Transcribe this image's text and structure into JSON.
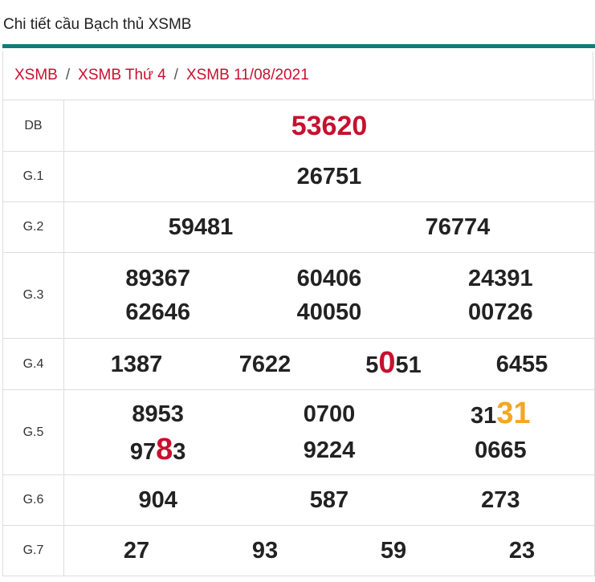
{
  "header": {
    "title": "Chi tiết cầu Bạch thủ XSMB"
  },
  "breadcrumb": [
    "XSMB",
    "XSMB Thứ 4",
    "XSMB 11/08/2021"
  ],
  "breadcrumb_separator": "/",
  "table": {
    "rows": [
      {
        "label": "DB",
        "color": "#c8102e",
        "numbers": [
          "53620"
        ]
      },
      {
        "label": "G.1",
        "numbers": [
          "26751"
        ]
      },
      {
        "label": "G.2",
        "numbers": [
          "59481",
          "76774"
        ]
      },
      {
        "label": "G.3",
        "numbers": [
          "89367",
          "60406",
          "24391",
          "62646",
          "40050",
          "00726"
        ]
      },
      {
        "label": "G.4",
        "numbers": [
          "1387",
          "7622",
          {
            "pre": "5",
            "hl": "0",
            "post": "51",
            "hl_color": "#c8102e"
          },
          "6455"
        ]
      },
      {
        "label": "G.5",
        "numbers": [
          "8953",
          "0700",
          {
            "pre": "31",
            "hl": "31",
            "hl_color": "#f5a623"
          },
          {
            "pre": "97",
            "hl": "8",
            "post": "3",
            "hl_color": "#c8102e"
          },
          "9224",
          "0665"
        ]
      },
      {
        "label": "G.6",
        "numbers": [
          "904",
          "587",
          "273"
        ]
      },
      {
        "label": "G.7",
        "numbers": [
          "27",
          "93",
          "59",
          "23"
        ]
      }
    ]
  }
}
